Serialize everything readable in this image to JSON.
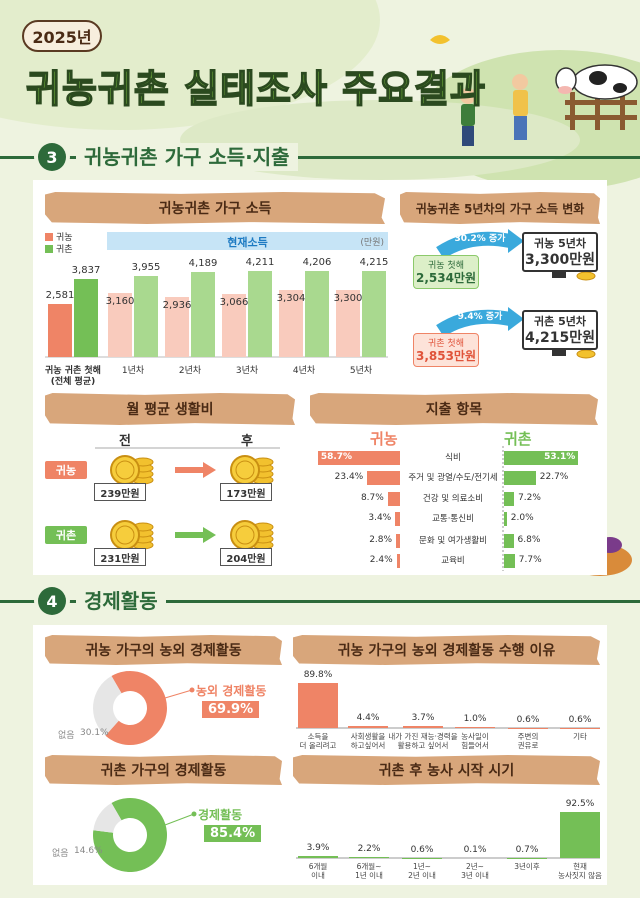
{
  "header": {
    "year": "2025년",
    "title": "귀농귀촌 실태조사 주요결과"
  },
  "sections": [
    {
      "number": "3",
      "title": "귀농귀촌 가구 소득·지출"
    },
    {
      "number": "4",
      "title": "경제활동"
    }
  ],
  "income_change": {
    "title": "귀농귀촌 5년차의 가구 소득 변화",
    "items": [
      {
        "start_label": "귀농 첫해",
        "start_value": "2,534만원",
        "change": "30.2% 증가",
        "end_label": "귀농 5년차",
        "end_value": "3,300만원"
      },
      {
        "start_label": "귀촌 첫해",
        "start_value": "3,853만원",
        "change": "9.4% 증가",
        "end_label": "귀촌 5년차",
        "end_value": "4,215만원"
      }
    ]
  },
  "living_cost": {
    "title": "월 평균 생활비",
    "columns": [
      "전",
      "후"
    ],
    "rows": [
      {
        "label": "귀농",
        "before": "239만원",
        "after": "173만원"
      },
      {
        "label": "귀촌",
        "before": "231만원",
        "after": "204만원"
      }
    ]
  },
  "chart_data": [
    {
      "type": "bar",
      "title": "귀농귀촌 가구 소득",
      "band_label": "현재소득",
      "unit": "(만원)",
      "categories": [
        "귀농 귀촌 첫해\n(전체 평균)",
        "1년차",
        "2년차",
        "3년차",
        "4년차",
        "5년차"
      ],
      "series": [
        {
          "name": "귀농",
          "color": "#ef8466",
          "light_color": "#f9cbbd",
          "values": [
            2581,
            3160,
            2936,
            3066,
            3304,
            3300
          ],
          "value_labels": [
            "2,581",
            "3,160",
            "2,936",
            "3,066",
            "3,304",
            "3,300"
          ]
        },
        {
          "name": "귀촌",
          "color": "#74bf56",
          "light_color": "#a9d98f",
          "values": [
            3837,
            3955,
            4189,
            4211,
            4206,
            4215
          ],
          "value_labels": [
            "3,837",
            "3,955",
            "4,189",
            "4,211",
            "4,206",
            "4,215"
          ]
        }
      ]
    },
    {
      "type": "diverging_bar",
      "title": "지출 항목",
      "categories": [
        "식비",
        "주거 및 광열/수도/전기세",
        "건강 및 의료소비",
        "교통·통신비",
        "문화 및 여가생활비",
        "교육비"
      ],
      "series": [
        {
          "name": "귀농",
          "color": "#ef8466",
          "values": [
            58.7,
            23.4,
            8.7,
            3.4,
            2.8,
            2.4
          ],
          "value_labels": [
            "58.7%",
            "23.4%",
            "8.7%",
            "3.4%",
            "2.8%",
            "2.4%"
          ]
        },
        {
          "name": "귀촌",
          "color": "#74bf56",
          "values": [
            53.1,
            22.7,
            7.2,
            2.0,
            6.8,
            7.7
          ],
          "value_labels": [
            "53.1%",
            "22.7%",
            "7.2%",
            "2.0%",
            "6.8%",
            "7.7%"
          ]
        }
      ]
    },
    {
      "type": "pie",
      "title": "귀농 가구의 농외 경제활동",
      "categories": [
        "농외 경제활동",
        "없음"
      ],
      "values": [
        69.9,
        30.1
      ],
      "value_labels": [
        "69.9%",
        "30.1%"
      ],
      "colors": [
        "#ef8466",
        "#e6e6e6"
      ]
    },
    {
      "type": "bar",
      "title": "귀농 가구의 농외 경제활동 수행 이유",
      "categories": [
        "소득을\n더 올리려고",
        "사회생활을\n하고싶어서",
        "내가 가진 재능·경력을\n활용하고 싶어서",
        "농사일이\n힘들어서",
        "주변의\n권유로",
        "기타"
      ],
      "values": [
        89.8,
        4.4,
        3.7,
        1.0,
        0.6,
        0.6
      ],
      "value_labels": [
        "89.8%",
        "4.4%",
        "3.7%",
        "1.0%",
        "0.6%",
        "0.6%"
      ],
      "color": "#ef8466"
    },
    {
      "type": "pie",
      "title": "귀촌 가구의 경제활동",
      "categories": [
        "경제활동",
        "없음"
      ],
      "values": [
        85.4,
        14.6
      ],
      "value_labels": [
        "85.4%",
        "14.6%"
      ],
      "colors": [
        "#74bf56",
        "#e6e6e6"
      ]
    },
    {
      "type": "bar",
      "title": "귀촌 후 농사 시작 시기",
      "categories": [
        "6개월\n이내",
        "6개월~\n1년 이내",
        "1년~\n2년 이내",
        "2년~\n3년 이내",
        "3년이후",
        "현재\n농사짓지 않음"
      ],
      "values": [
        3.9,
        2.2,
        0.6,
        0.1,
        0.7,
        92.5
      ],
      "value_labels": [
        "3.9%",
        "2.2%",
        "0.6%",
        "0.1%",
        "0.7%",
        "92.5%"
      ],
      "color": "#74bf56"
    }
  ]
}
